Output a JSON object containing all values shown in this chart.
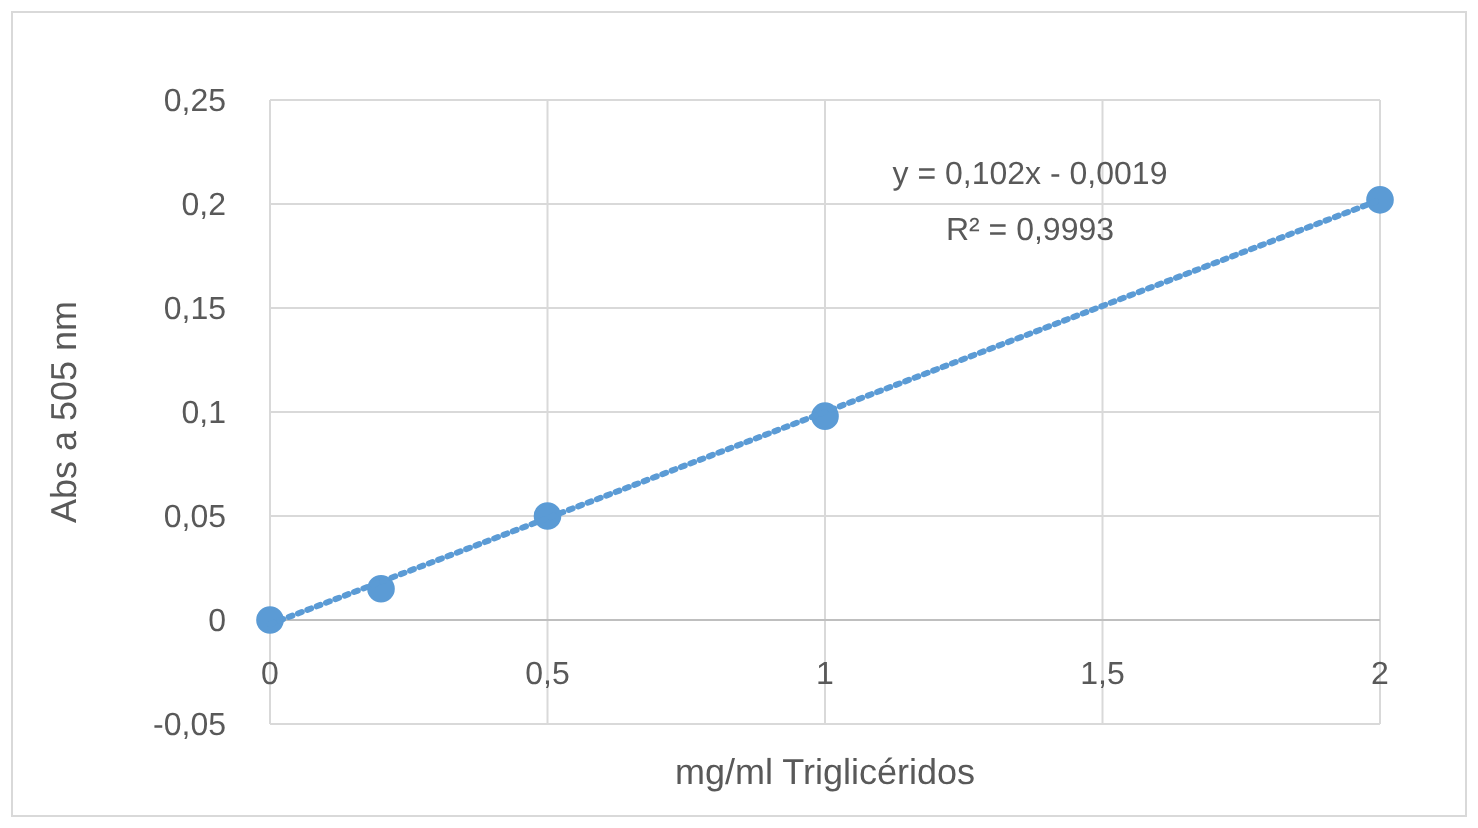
{
  "chart_data": {
    "type": "scatter",
    "xlabel": "mg/ml Triglicéridos",
    "ylabel": "Abs a 505 nm",
    "annotations": [
      "y = 0,102x - 0,0019",
      "R² = 0,9993"
    ],
    "series": [
      {
        "color": "#5b9bd5",
        "x": [
          0,
          0.2,
          0.5,
          1,
          2
        ],
        "values": [
          0,
          0.015,
          0.05,
          0.098,
          0.202
        ],
        "marker": "circle"
      },
      {
        "type": "line",
        "color": "#5b9bd5",
        "x": [
          0,
          2
        ],
        "values": [
          -0.002,
          0.202
        ],
        "line_style": "dotted",
        "marker": "none"
      }
    ],
    "xlim": [
      0,
      2
    ],
    "ylim": [
      -0.05,
      0.25
    ],
    "xticks": [
      0,
      {
        "value": 0.5,
        "label": "0,5"
      },
      1,
      {
        "value": 1.5,
        "label": "1,5"
      },
      2
    ],
    "yticks": [
      {
        "value": -0.05,
        "label": "-0,05"
      },
      0,
      {
        "value": 0.05,
        "label": "0,05"
      },
      {
        "value": 0.1,
        "label": "0,1"
      },
      {
        "value": 0.15,
        "label": "0,15"
      },
      {
        "value": 0.2,
        "label": "0,2"
      },
      {
        "value": 0.25,
        "label": "0,25"
      }
    ],
    "grid": true
  }
}
